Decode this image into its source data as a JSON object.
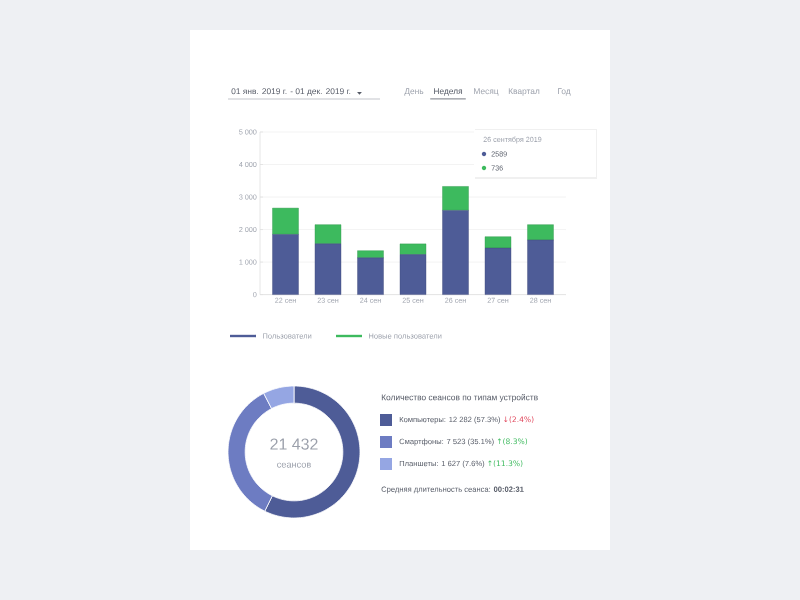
{
  "chart_data": [
    {
      "type": "bar",
      "stacked": true,
      "grid": "y",
      "legend": "bottom",
      "categories": [
        "22 сен",
        "23 сен",
        "24 сен",
        "25 сен",
        "26 сен",
        "27 сен",
        "28 сен"
      ],
      "series": [
        {
          "name": "Пользователи",
          "color": "#4e5c97",
          "values": [
            1850,
            1560,
            1130,
            1230,
            2589,
            1430,
            1680
          ]
        },
        {
          "name": "Новые пользователи",
          "color": "#3dba5e",
          "values": [
            810,
            590,
            220,
            330,
            736,
            350,
            470
          ]
        }
      ],
      "ylim": [
        0,
        5000
      ],
      "yticks": [
        0,
        {
          "value": 1000,
          "label": "1 000"
        },
        {
          "value": 2000,
          "label": "2 000"
        },
        {
          "value": 3000,
          "label": "3 000"
        },
        {
          "value": 4000,
          "label": "4 000"
        },
        {
          "value": 5000,
          "label": "5 000"
        }
      ],
      "annotations": [
        "01 янв. 2019 г. - 01 дек. 2019 г.",
        "День",
        "Неделя",
        "Месяц",
        "Квартал",
        "Год",
        "26 сентября 2019",
        "2589",
        "736"
      ]
    },
    {
      "type": "donut",
      "title": "Количество сеансов по типам устройств",
      "legend": "right",
      "categories": [
        "Компьютеры",
        "Смартфоны",
        "Планшеты"
      ],
      "values": [
        12282,
        7523,
        1627
      ],
      "value_labels": [
        ": 12 282 (57.3%)",
        ": 7 523 (35.1%)",
        ": 1 627 (7.6%)"
      ],
      "colors": [
        "#4e5c97",
        "#6d7cc2",
        "#95a6e3"
      ],
      "annotations": [
        "21 432",
        "сеансов",
        "↓(2.4%)",
        "↑(8.3%)",
        "↑(11.3%)",
        "Средняя длительность сеанса: **00:02:31**"
      ]
    }
  ]
}
